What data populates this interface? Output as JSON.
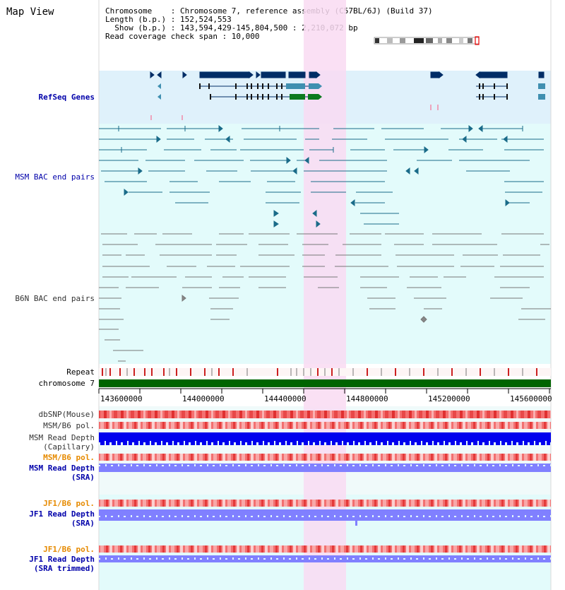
{
  "view_title": "Map View",
  "header": {
    "lines": [
      "Chromosome    : Chromosome 7, reference assembly (C57BL/6J) (Build 37)",
      "Length (b.p.) : 152,524,553",
      "  Show (b.p.) : 143,594,429-145,804,500 : 2,210,072 bp",
      "Read coverage check span : 10,000"
    ]
  },
  "colors": {
    "band_blue": "#dff1fb",
    "band_cyan": "#e3fbfb",
    "highlight": "#f9daf2",
    "gene_navy": "#002d66",
    "gene_teal": "#3f8fb0",
    "gene_green": "#0b7a1f",
    "bac_teal": "#1a6b89",
    "bac_gray": "#777777",
    "chromosome_green": "#006400",
    "depth_blue": "#0000ee",
    "depth_light": "#8080ff",
    "snp_red": "#f05050",
    "label_blue": "#0000aa",
    "label_orange": "#e68a00"
  },
  "tracks": {
    "refseq_label": "RefSeq Genes",
    "msm_bac_label": "MSM BAC end pairs",
    "b6n_bac_label": "B6N BAC end pairs",
    "repeat_label": "Repeat",
    "chromosome_label": "chromosome 7",
    "dbsnp_label": "dbSNP(Mouse)",
    "msm_b6_pol_label": "MSM/B6 pol.",
    "msm_depth_cap_label": "MSM Read Depth",
    "msm_depth_cap_sub": "(Capillary)",
    "msm_b6_pol2_label": "MSM/B6 pol.",
    "msm_depth_sra_label": "MSM Read Depth",
    "msm_depth_sra_sub": "(SRA)",
    "jf1_b6_pol_label": "JF1/B6 pol.",
    "jf1_depth_sra_label": "JF1 Read Depth",
    "jf1_depth_sra_sub": "(SRA)",
    "jf1_b6_pol2_label": "JF1/B6 pol.",
    "jf1_depth_trim_label": "JF1 Read Depth",
    "jf1_depth_trim_sub": "(SRA trimmed)"
  },
  "axis_ticks": [
    "143600000",
    "144000000",
    "144400000",
    "144800000",
    "145200000",
    "145600000"
  ]
}
